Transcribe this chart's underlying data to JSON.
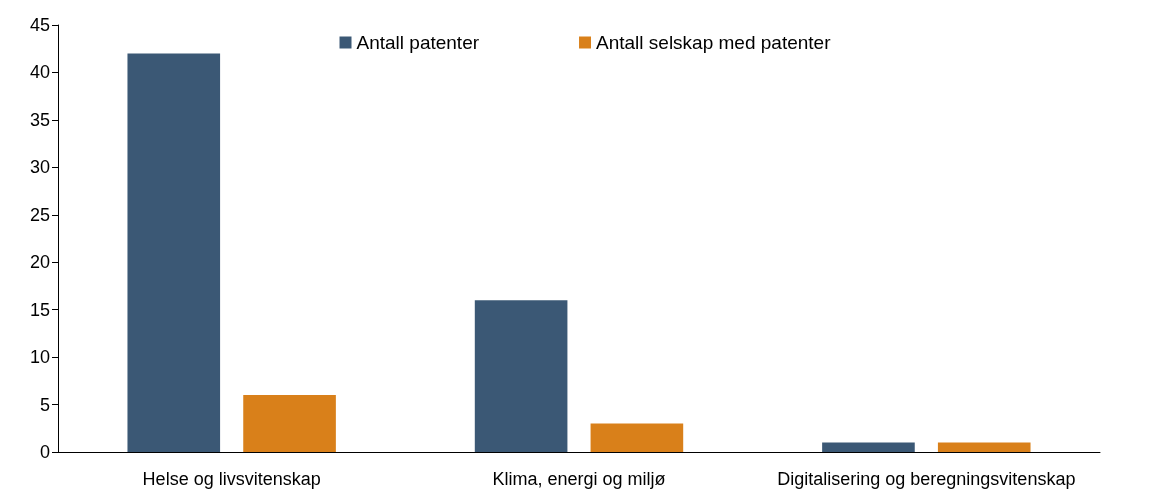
{
  "chart_data": {
    "type": "bar",
    "categories": [
      "Helse og livsvitenskap",
      "Klima, energi og miljø",
      "Digitalisering og beregningsvitenskap"
    ],
    "series": [
      {
        "name": "Antall patenter",
        "color": "#3b5875",
        "values": [
          42,
          16,
          1
        ]
      },
      {
        "name": "Antall selskap med patenter",
        "color": "#d9801a",
        "values": [
          6,
          3,
          1
        ]
      }
    ],
    "ylim": [
      0,
      45
    ],
    "yticks": [
      0,
      5,
      10,
      15,
      20,
      25,
      30,
      35,
      40,
      45
    ],
    "grid": false,
    "legend": "top"
  }
}
